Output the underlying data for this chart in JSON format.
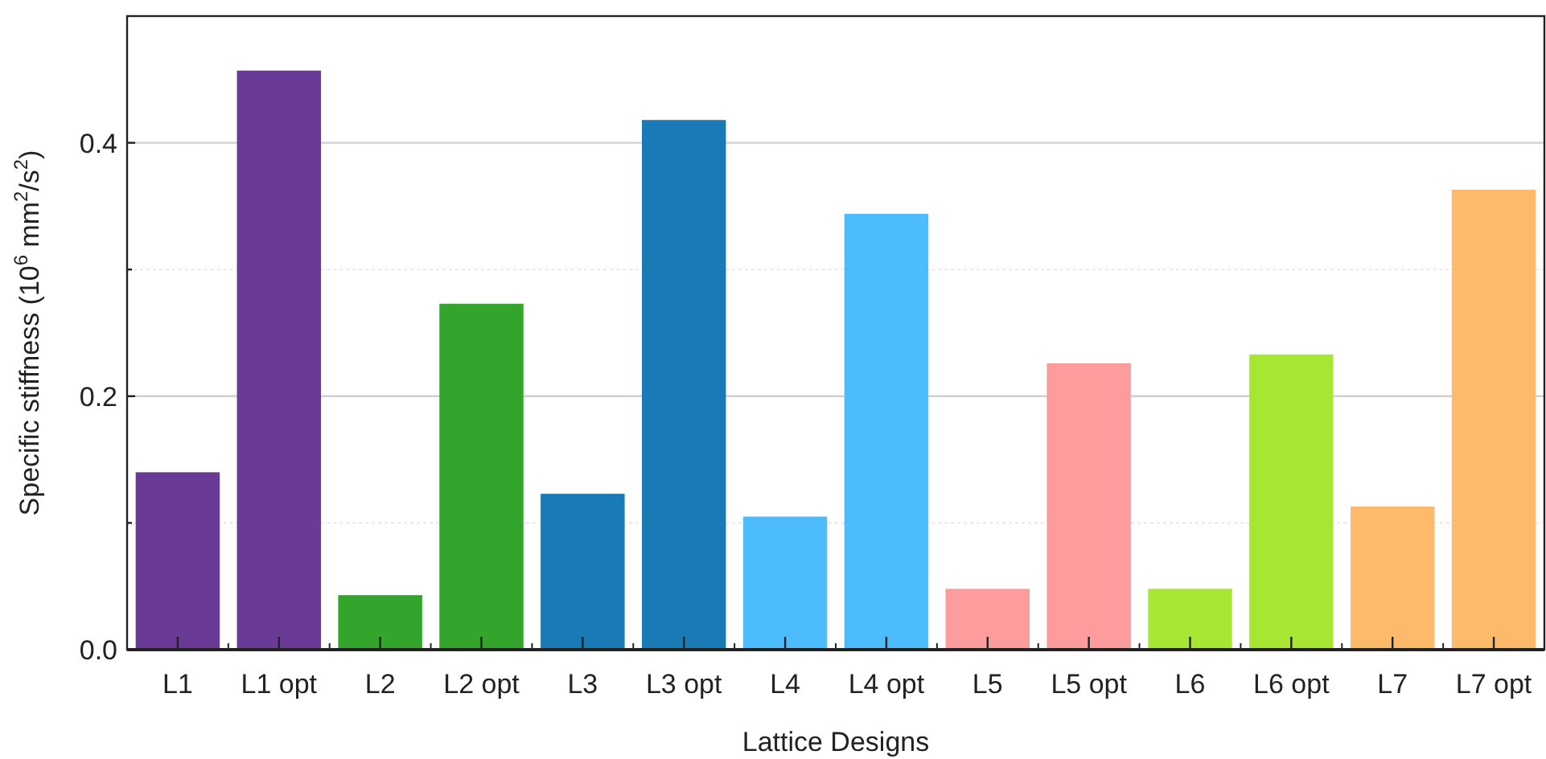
{
  "chart_data": {
    "type": "bar",
    "xlabel": "Lattice Designs",
    "ylabel": "Specific stiffness (10$^{6}$ mm$^{2}$/s$^{2}$)",
    "categories": [
      "L1",
      "L1 opt",
      "L2",
      "L2 opt",
      "L3",
      "L3 opt",
      "L4",
      "L4 opt",
      "L5",
      "L5 opt",
      "L6",
      "L6 opt",
      "L7",
      "L7 opt"
    ],
    "values": [
      0.14,
      0.457,
      0.043,
      0.273,
      0.123,
      0.418,
      0.105,
      0.344,
      0.048,
      0.226,
      0.048,
      0.233,
      0.113,
      0.363
    ],
    "colors": [
      "#6a3a97",
      "#6a3a97",
      "#33a42c",
      "#33a42c",
      "#1a7ab5",
      "#1a7ab5",
      "#4cbcfd",
      "#4cbcfd",
      "#fd9c9c",
      "#fd9c9c",
      "#a7e733",
      "#a7e733",
      "#fdba6a",
      "#fdba6a"
    ],
    "ylim": [
      0,
      0.5
    ],
    "yticks": [
      {
        "value": 0,
        "label": "0.0"
      },
      {
        "value": 0.1,
        "label": null
      },
      0.2,
      {
        "value": 0.3,
        "label": null
      },
      0.4
    ],
    "grid": "y"
  }
}
